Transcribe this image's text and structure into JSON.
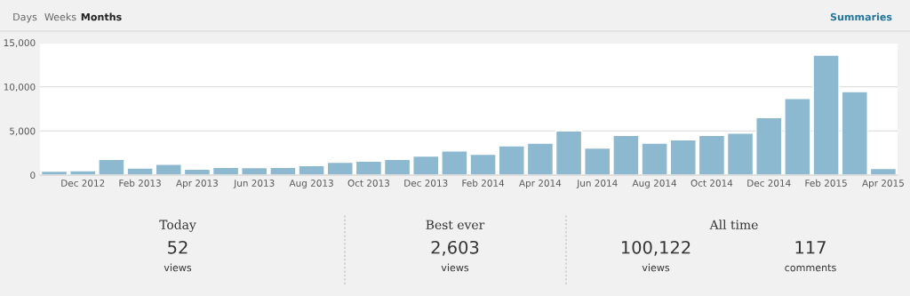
{
  "chart_data": {
    "type": "bar",
    "categories": [
      null,
      "Dec 2012",
      null,
      "Feb 2013",
      null,
      "Apr 2013",
      null,
      "Jun 2013",
      null,
      "Aug 2013",
      null,
      "Oct 2013",
      null,
      "Dec 2013",
      null,
      "Feb 2014",
      null,
      "Apr 2014",
      null,
      "Jun 2014",
      null,
      "Aug 2014",
      null,
      "Oct 2014",
      null,
      "Dec 2014",
      null,
      "Feb 2015",
      null,
      "Apr 2015"
    ],
    "values": [
      440,
      510,
      1790,
      810,
      1220,
      680,
      880,
      850,
      880,
      1080,
      1450,
      1590,
      1790,
      2160,
      2730,
      2360,
      3310,
      3620,
      5000,
      3070,
      4490,
      3620,
      3990,
      4490,
      4760,
      6520,
      8680,
      13580,
      9460,
      740
    ],
    "color": "#8cb9cf",
    "ylim": [
      0,
      15000
    ],
    "yticks": [
      {
        "value": 0,
        "label": "0"
      },
      {
        "value": 5000,
        "label": "5,000"
      },
      {
        "value": 10000,
        "label": "10,000"
      },
      {
        "value": 15000,
        "label": "15,000"
      }
    ],
    "grid": "y",
    "legend": false,
    "annotations": [
      "Days",
      "Weeks",
      "Months",
      "Summaries",
      "Today",
      "52",
      "views",
      "Best ever",
      "2,603",
      "views",
      "All time",
      "100,122",
      "views",
      "117",
      "comments"
    ]
  }
}
